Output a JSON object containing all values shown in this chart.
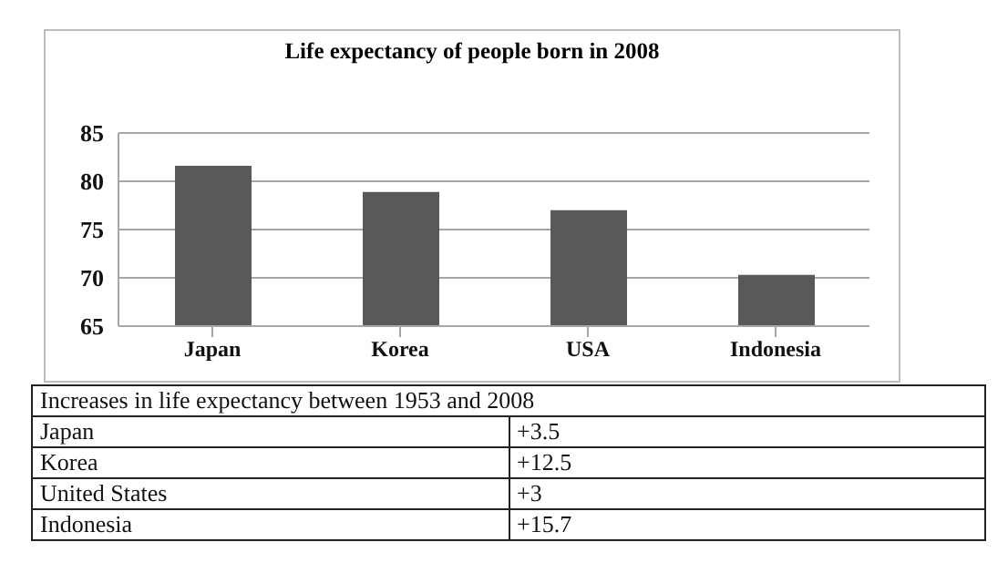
{
  "chart_data": [
    {
      "type": "bar",
      "title": "Life expectancy of people born in 2008",
      "categories": [
        "Japan",
        "Korea",
        "USA",
        "Indonesia"
      ],
      "values": [
        81.6,
        78.9,
        77.0,
        70.3
      ],
      "color": "#595959",
      "ylim": [
        65,
        85
      ],
      "yticks": [
        65,
        70,
        75,
        80,
        85
      ],
      "grid": "y"
    },
    {
      "type": "other",
      "title": "Increases in life expectancy between 1953 and 2008",
      "categories": [
        "Japan",
        "Korea",
        "United States",
        "Indonesia"
      ],
      "value_labels": [
        "+3.5",
        "+12.5",
        "+3",
        "+15.7"
      ]
    }
  ]
}
